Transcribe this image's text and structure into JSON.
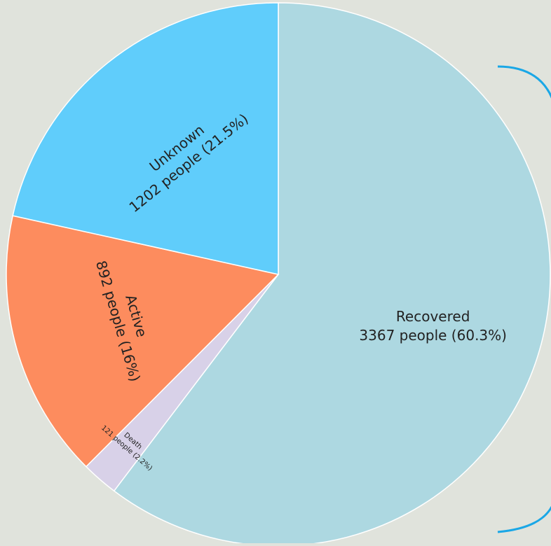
{
  "chart_data": {
    "type": "pie",
    "title": "",
    "legend": "none",
    "start_angle_deg": 0,
    "direction": "clockwise",
    "slices": [
      {
        "label": "Recovered",
        "value": 3367,
        "detail": "3367 people (60.3%)",
        "color": "#add8e1"
      },
      {
        "label": "Death",
        "value": 121,
        "detail": "121 people (2.2%)",
        "color": "#d8d1e8"
      },
      {
        "label": "Active",
        "value": 892,
        "detail": "892 people (16%)",
        "color": "#fd8c5e"
      },
      {
        "label": "Unknown",
        "value": 1202,
        "detail": "1202 people (21.5%)",
        "color": "#60cdfb"
      }
    ]
  },
  "decoration": {
    "bracket_color": "#1aa7e6"
  }
}
